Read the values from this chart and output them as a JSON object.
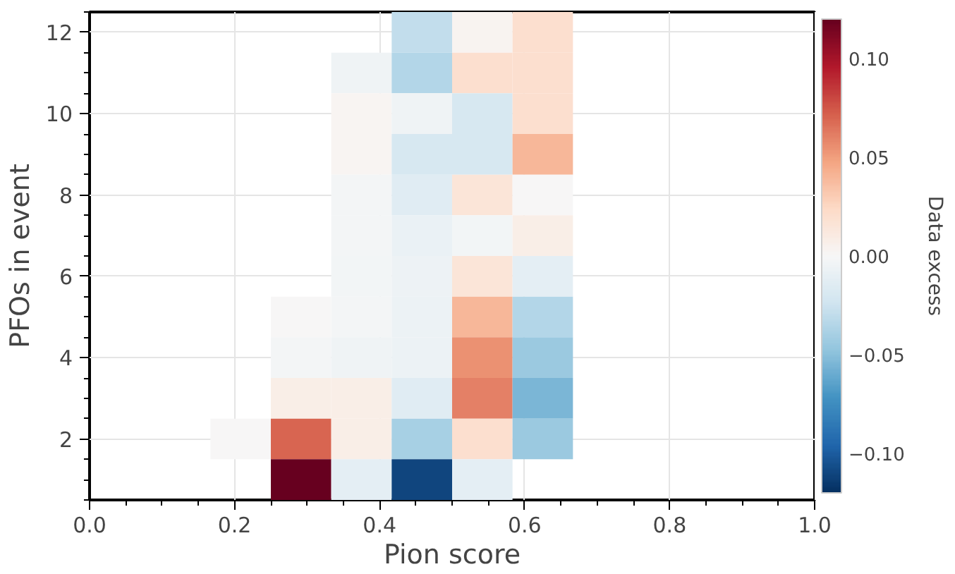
{
  "chart_data": {
    "type": "heatmap",
    "xlabel": "Pion score",
    "ylabel": "PFOs in event",
    "clabel": "Data excess",
    "cells": [
      [
        null,
        null,
        null,
        null,
        null,
        -0.03,
        0.003,
        0.02,
        null,
        null,
        null,
        null
      ],
      [
        null,
        null,
        null,
        null,
        -0.005,
        -0.035,
        0.02,
        0.02,
        null,
        null,
        null,
        null
      ],
      [
        null,
        null,
        null,
        null,
        0.002,
        -0.005,
        -0.02,
        0.02,
        null,
        null,
        null,
        null
      ],
      [
        null,
        null,
        null,
        null,
        0.002,
        -0.02,
        -0.02,
        0.04,
        null,
        null,
        null,
        null
      ],
      [
        null,
        null,
        null,
        null,
        -0.002,
        -0.015,
        0.015,
        0.0,
        null,
        null,
        null,
        null
      ],
      [
        null,
        null,
        null,
        null,
        -0.002,
        -0.008,
        -0.003,
        0.008,
        null,
        null,
        null,
        null
      ],
      [
        null,
        null,
        null,
        null,
        -0.003,
        -0.006,
        0.015,
        -0.012,
        null,
        null,
        null,
        null
      ],
      [
        null,
        null,
        null,
        0.0,
        -0.002,
        -0.007,
        0.04,
        -0.035,
        null,
        null,
        null,
        null
      ],
      [
        null,
        null,
        null,
        -0.002,
        -0.005,
        -0.007,
        0.055,
        -0.045,
        null,
        null,
        null,
        null
      ],
      [
        null,
        null,
        null,
        0.008,
        0.008,
        -0.015,
        0.06,
        -0.055,
        null,
        null,
        null,
        null
      ],
      [
        null,
        null,
        0.0,
        0.07,
        0.008,
        -0.04,
        0.02,
        -0.045,
        null,
        null,
        null,
        null
      ],
      [
        null,
        null,
        null,
        0.12,
        -0.012,
        -0.11,
        -0.012,
        null,
        null,
        null,
        null,
        null
      ]
    ],
    "xlim": [
      0,
      1
    ],
    "xticks": [
      {
        "value": 0,
        "label": "0.0"
      },
      {
        "value": 0.2,
        "label": "0.2"
      },
      {
        "value": 0.4,
        "label": "0.4"
      },
      {
        "value": 0.6,
        "label": "0.6"
      },
      {
        "value": 0.8,
        "label": "0.8"
      },
      {
        "value": 1,
        "label": "1.0"
      }
    ],
    "ylim": [
      0.5,
      12.5
    ],
    "yticks": [
      2,
      4,
      6,
      8,
      10,
      12
    ],
    "clim": [
      -0.12,
      0.12
    ],
    "cticks": [
      {
        "value": -0.1,
        "label": "−0.10"
      },
      {
        "value": -0.05,
        "label": "−0.05"
      },
      {
        "value": 0,
        "label": "0.00"
      },
      {
        "value": 0.05,
        "label": "0.05"
      },
      {
        "value": 0.1,
        "label": "0.10"
      }
    ],
    "grid": true
  }
}
